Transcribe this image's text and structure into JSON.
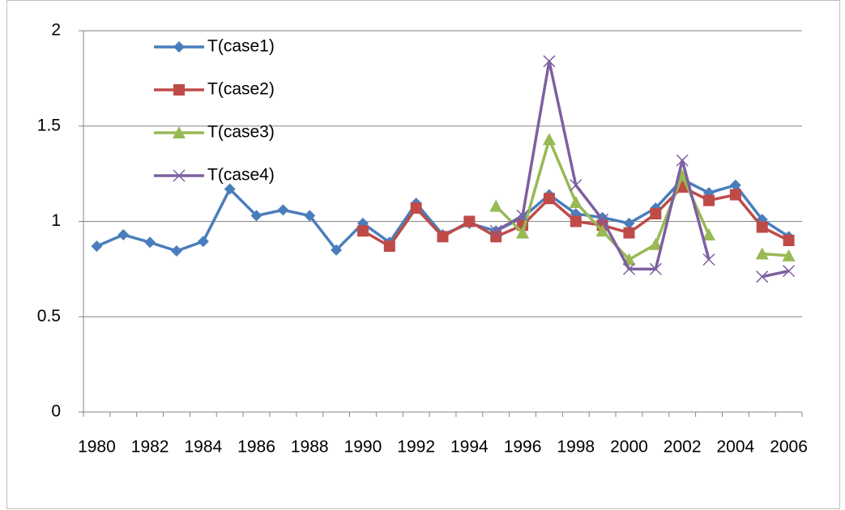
{
  "chart_data": {
    "type": "line",
    "categories": [
      "1980",
      null,
      "1982",
      null,
      "1984",
      null,
      "1986",
      null,
      "1988",
      null,
      "1990",
      null,
      "1992",
      null,
      "1994",
      null,
      "1996",
      null,
      "1998",
      null,
      "2000",
      null,
      "2002",
      null,
      "2004",
      null,
      "2006"
    ],
    "series": [
      {
        "name": "T(case1)",
        "color": "#4a7ebb",
        "marker": "diamond",
        "values": [
          0.87,
          0.93,
          0.89,
          0.845,
          0.895,
          1.17,
          1.03,
          1.06,
          1.03,
          0.85,
          0.99,
          0.89,
          1.095,
          0.93,
          0.99,
          0.95,
          1.02,
          1.14,
          1.04,
          1.02,
          0.99,
          1.07,
          1.22,
          1.15,
          1.19,
          1.01,
          0.92
        ]
      },
      {
        "name": "T(case2)",
        "color": "#be4b48",
        "marker": "square",
        "values": [
          null,
          null,
          null,
          null,
          null,
          null,
          null,
          null,
          null,
          null,
          0.95,
          0.87,
          1.07,
          0.92,
          1.0,
          0.92,
          0.98,
          1.12,
          1.0,
          0.98,
          0.94,
          1.04,
          1.18,
          1.11,
          1.14,
          0.97,
          0.9
        ]
      },
      {
        "name": "T(case3)",
        "color": "#98b954",
        "marker": "triangle",
        "values": [
          null,
          null,
          null,
          null,
          null,
          null,
          null,
          null,
          null,
          null,
          null,
          null,
          null,
          null,
          null,
          1.08,
          0.94,
          1.43,
          1.1,
          0.95,
          0.8,
          0.88,
          1.24,
          0.93,
          null,
          0.83,
          0.82
        ]
      },
      {
        "name": "T(case4)",
        "color": "#7d60a0",
        "marker": "x",
        "values": [
          null,
          null,
          null,
          null,
          null,
          null,
          null,
          null,
          null,
          null,
          null,
          null,
          null,
          null,
          null,
          0.95,
          1.03,
          1.84,
          1.19,
          1.01,
          0.75,
          0.75,
          1.32,
          0.8,
          null,
          0.71,
          0.74
        ]
      }
    ],
    "ylim": [
      0,
      2
    ],
    "yticks": [
      0,
      {
        "value": 0.5,
        "label": "0.5"
      },
      1,
      {
        "value": 1.5,
        "label": "1.5"
      },
      2
    ],
    "grid": true,
    "legend": "top-left"
  }
}
